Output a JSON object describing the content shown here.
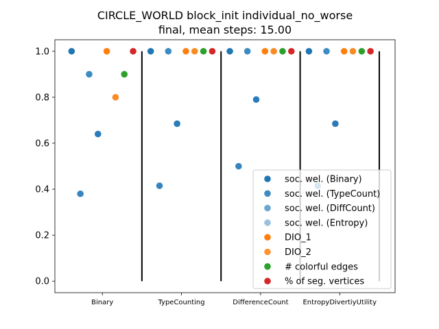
{
  "chart_data": {
    "type": "scatter",
    "title": "CIRCLE_WORLD block_init individual_no_worse",
    "subtitle": "final, mean steps: 15.00",
    "xlabel": "",
    "ylabel": "",
    "ylim": [
      -0.05,
      1.05
    ],
    "yticks": [
      0.0,
      0.2,
      0.4,
      0.6,
      0.8,
      1.0
    ],
    "ytick_labels": [
      "0.0",
      "0.2",
      "0.4",
      "0.6",
      "0.8",
      "1.0"
    ],
    "categories": [
      "Binary",
      "TypeCounting",
      "DifferenceCount",
      "EntropyDivertiyUtility"
    ],
    "grid": false,
    "legend_position": "lower right",
    "series": [
      {
        "name": "soc. wel. (Binary)",
        "color": "#1f77b4",
        "values": [
          1.0,
          1.0,
          1.0,
          1.0
        ]
      },
      {
        "name": "soc. wel. (TypeCount)",
        "color": "#3585bf",
        "values": [
          0.38,
          0.415,
          0.5,
          0.415
        ]
      },
      {
        "name": "soc. wel. (DiffCount)",
        "color": "#3b8cc4",
        "values": [
          0.9,
          1.0,
          1.0,
          1.0
        ]
      },
      {
        "name": "soc. wel. (Entropy)",
        "color": "#2b7bba",
        "values": [
          0.64,
          0.685,
          0.79,
          0.685
        ]
      },
      {
        "name": "DIO_1",
        "color": "#ff7f0e",
        "values": [
          1.0,
          1.0,
          1.0,
          1.0
        ]
      },
      {
        "name": "DIO_2",
        "color": "#f98b24",
        "values": [
          0.8,
          1.0,
          1.0,
          1.0
        ]
      },
      {
        "name": "# colorful edges",
        "color": "#2ca02c",
        "values": [
          0.9,
          1.0,
          1.0,
          1.0
        ]
      },
      {
        "name": "% of seg. vertices",
        "color": "#d62728",
        "values": [
          1.0,
          1.0,
          1.0,
          1.0
        ]
      }
    ],
    "legend": [
      {
        "label": "soc. wel. (Binary)",
        "color": "#1f77b4",
        "alpha": 1.0
      },
      {
        "label": "soc. wel. (TypeCount)",
        "color": "#1f77b4",
        "alpha": 0.85
      },
      {
        "label": "soc. wel. (DiffCount)",
        "color": "#1f77b4",
        "alpha": 0.65
      },
      {
        "label": "soc. wel. (Entropy)",
        "color": "#1f77b4",
        "alpha": 0.45
      },
      {
        "label": "DIO_1",
        "color": "#ff7f0e",
        "alpha": 1.0
      },
      {
        "label": "DIO_2",
        "color": "#ff7f0e",
        "alpha": 0.85
      },
      {
        "label": "# colorful edges",
        "color": "#2ca02c",
        "alpha": 1.0
      },
      {
        "label": "% of seg. vertices",
        "color": "#d62728",
        "alpha": 1.0
      }
    ]
  }
}
